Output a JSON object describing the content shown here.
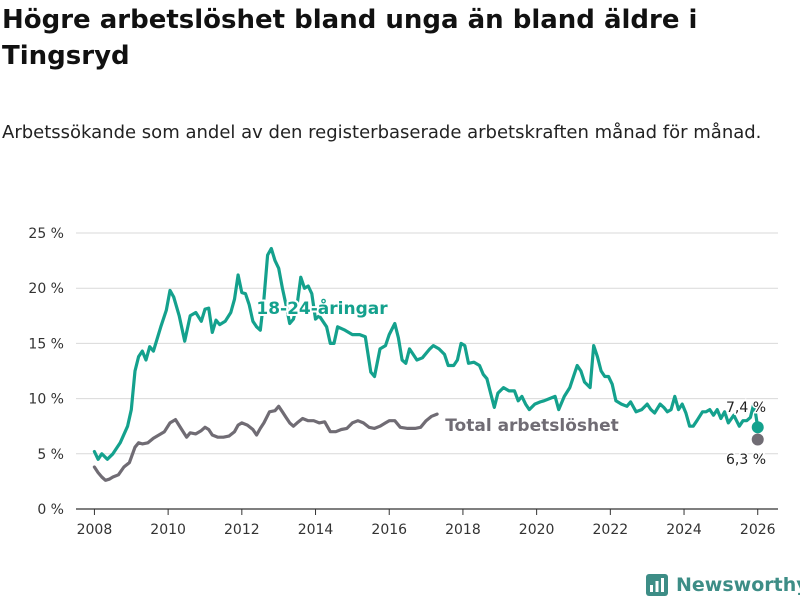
{
  "header": {
    "title": "Högre arbetslöshet bland unga än bland äldre i Tingsryd",
    "subtitle": "Arbetssökande som andel av den registerbaserade arbetskraften månad för månad."
  },
  "brand": {
    "name": "Newsworthy",
    "icon": "newsworthy-logo-icon"
  },
  "colors": {
    "youth": "#14a18d",
    "total": "#706c74",
    "grid": "#d9d9d9",
    "axis": "#333333",
    "brand": "#3d8d86"
  },
  "chart_data": {
    "type": "line",
    "title": "Högre arbetslöshet bland unga än bland äldre i Tingsryd",
    "xlabel": "",
    "ylabel": "",
    "xlim": [
      2007.5,
      2026.55
    ],
    "ylim": [
      0,
      25
    ],
    "y_ticks": [
      0,
      5,
      10,
      15,
      20,
      25
    ],
    "y_tick_labels": [
      "0 %",
      "5 %",
      "10 %",
      "15 %",
      "20 %",
      "25 %"
    ],
    "x_ticks": [
      2008,
      2010,
      2012,
      2014,
      2016,
      2018,
      2020,
      2022,
      2024,
      2026
    ],
    "x_tick_labels": [
      "2008",
      "2010",
      "2012",
      "2014",
      "2016",
      "2018",
      "2020",
      "2022",
      "2024",
      "2026"
    ],
    "grid": true,
    "series": [
      {
        "name": "18-24-åringar",
        "label": "18-24-åringar",
        "end_label": "7,4 %",
        "end_value": 7.4,
        "points": [
          [
            2008.0,
            5.2
          ],
          [
            2008.1,
            4.5
          ],
          [
            2008.2,
            5.0
          ],
          [
            2008.35,
            4.5
          ],
          [
            2008.5,
            5.0
          ],
          [
            2008.7,
            6.0
          ],
          [
            2008.9,
            7.5
          ],
          [
            2009.0,
            9.0
          ],
          [
            2009.1,
            12.5
          ],
          [
            2009.2,
            13.8
          ],
          [
            2009.3,
            14.3
          ],
          [
            2009.4,
            13.5
          ],
          [
            2009.5,
            14.7
          ],
          [
            2009.6,
            14.3
          ],
          [
            2009.8,
            16.5
          ],
          [
            2009.95,
            18.0
          ],
          [
            2010.05,
            19.8
          ],
          [
            2010.15,
            19.2
          ],
          [
            2010.3,
            17.5
          ],
          [
            2010.45,
            15.2
          ],
          [
            2010.6,
            17.5
          ],
          [
            2010.75,
            17.8
          ],
          [
            2010.9,
            17.0
          ],
          [
            2011.0,
            18.1
          ],
          [
            2011.1,
            18.2
          ],
          [
            2011.2,
            16.0
          ],
          [
            2011.3,
            17.1
          ],
          [
            2011.4,
            16.7
          ],
          [
            2011.55,
            17.0
          ],
          [
            2011.7,
            17.8
          ],
          [
            2011.8,
            19.0
          ],
          [
            2011.9,
            21.2
          ],
          [
            2012.0,
            19.6
          ],
          [
            2012.1,
            19.5
          ],
          [
            2012.2,
            18.5
          ],
          [
            2012.3,
            17.0
          ],
          [
            2012.4,
            16.5
          ],
          [
            2012.5,
            16.2
          ],
          [
            2012.6,
            19.0
          ],
          [
            2012.7,
            23.0
          ],
          [
            2012.8,
            23.6
          ],
          [
            2012.9,
            22.5
          ],
          [
            2013.0,
            21.8
          ],
          [
            2013.1,
            20.0
          ],
          [
            2013.2,
            18.5
          ],
          [
            2013.3,
            16.8
          ],
          [
            2013.4,
            17.2
          ],
          [
            2013.5,
            18.5
          ],
          [
            2013.6,
            21.0
          ],
          [
            2013.7,
            20.0
          ],
          [
            2013.8,
            20.2
          ],
          [
            2013.9,
            19.5
          ],
          [
            2014.0,
            17.2
          ],
          [
            2014.1,
            17.5
          ],
          [
            2014.2,
            17.0
          ],
          [
            2014.3,
            16.5
          ],
          [
            2014.4,
            15.0
          ],
          [
            2014.5,
            15.0
          ],
          [
            2014.6,
            16.5
          ],
          [
            2014.8,
            16.2
          ],
          [
            2015.0,
            15.8
          ],
          [
            2015.2,
            15.8
          ],
          [
            2015.35,
            15.6
          ],
          [
            2015.5,
            12.4
          ],
          [
            2015.6,
            12.0
          ],
          [
            2015.75,
            14.5
          ],
          [
            2015.9,
            14.8
          ],
          [
            2016.0,
            15.8
          ],
          [
            2016.15,
            16.8
          ],
          [
            2016.25,
            15.5
          ],
          [
            2016.35,
            13.5
          ],
          [
            2016.45,
            13.2
          ],
          [
            2016.55,
            14.5
          ],
          [
            2016.65,
            14.0
          ],
          [
            2016.75,
            13.5
          ],
          [
            2016.9,
            13.7
          ],
          [
            2017.1,
            14.5
          ],
          [
            2017.2,
            14.8
          ],
          [
            2017.35,
            14.5
          ],
          [
            2017.5,
            14.0
          ],
          [
            2017.6,
            13.0
          ],
          [
            2017.75,
            13.0
          ],
          [
            2017.85,
            13.5
          ],
          [
            2017.95,
            15.0
          ],
          [
            2018.05,
            14.8
          ],
          [
            2018.15,
            13.2
          ],
          [
            2018.3,
            13.3
          ],
          [
            2018.45,
            13.0
          ],
          [
            2018.55,
            12.2
          ],
          [
            2018.65,
            11.8
          ],
          [
            2018.75,
            10.5
          ],
          [
            2018.85,
            9.2
          ],
          [
            2018.95,
            10.5
          ],
          [
            2019.1,
            11.0
          ],
          [
            2019.25,
            10.7
          ],
          [
            2019.4,
            10.7
          ],
          [
            2019.5,
            9.8
          ],
          [
            2019.6,
            10.2
          ],
          [
            2019.7,
            9.5
          ],
          [
            2019.8,
            9.0
          ],
          [
            2019.95,
            9.5
          ],
          [
            2020.1,
            9.7
          ],
          [
            2020.2,
            9.8
          ],
          [
            2020.35,
            10.0
          ],
          [
            2020.5,
            10.2
          ],
          [
            2020.6,
            9.0
          ],
          [
            2020.75,
            10.2
          ],
          [
            2020.9,
            11.0
          ],
          [
            2021.0,
            12.0
          ],
          [
            2021.1,
            13.0
          ],
          [
            2021.2,
            12.5
          ],
          [
            2021.3,
            11.5
          ],
          [
            2021.45,
            11.0
          ],
          [
            2021.55,
            14.8
          ],
          [
            2021.65,
            13.8
          ],
          [
            2021.75,
            12.5
          ],
          [
            2021.85,
            12.0
          ],
          [
            2021.95,
            12.0
          ],
          [
            2022.05,
            11.3
          ],
          [
            2022.15,
            9.8
          ],
          [
            2022.3,
            9.5
          ],
          [
            2022.45,
            9.3
          ],
          [
            2022.55,
            9.7
          ],
          [
            2022.7,
            8.8
          ],
          [
            2022.85,
            9.0
          ],
          [
            2023.0,
            9.5
          ],
          [
            2023.1,
            9.0
          ],
          [
            2023.2,
            8.7
          ],
          [
            2023.35,
            9.5
          ],
          [
            2023.45,
            9.2
          ],
          [
            2023.55,
            8.8
          ],
          [
            2023.65,
            9.0
          ],
          [
            2023.75,
            10.2
          ],
          [
            2023.85,
            9.0
          ],
          [
            2023.95,
            9.5
          ],
          [
            2024.05,
            8.7
          ],
          [
            2024.15,
            7.5
          ],
          [
            2024.25,
            7.5
          ],
          [
            2024.35,
            8.0
          ],
          [
            2024.5,
            8.8
          ],
          [
            2024.6,
            8.8
          ],
          [
            2024.7,
            9.0
          ],
          [
            2024.8,
            8.5
          ],
          [
            2024.9,
            9.0
          ],
          [
            2025.0,
            8.2
          ],
          [
            2025.1,
            8.8
          ],
          [
            2025.2,
            7.8
          ],
          [
            2025.35,
            8.5
          ],
          [
            2025.5,
            7.5
          ],
          [
            2025.6,
            8.0
          ],
          [
            2025.7,
            8.0
          ],
          [
            2025.8,
            8.3
          ],
          [
            2025.9,
            9.6
          ],
          [
            2026.0,
            7.4
          ]
        ]
      },
      {
        "name": "Total arbetslöshet",
        "label": "Total arbetslöshet",
        "end_label": "6,3 %",
        "end_value": 6.3,
        "points": [
          [
            2008.0,
            3.8
          ],
          [
            2008.1,
            3.3
          ],
          [
            2008.2,
            2.9
          ],
          [
            2008.3,
            2.6
          ],
          [
            2008.4,
            2.7
          ],
          [
            2008.5,
            2.9
          ],
          [
            2008.65,
            3.1
          ],
          [
            2008.8,
            3.8
          ],
          [
            2008.95,
            4.2
          ],
          [
            2009.1,
            5.6
          ],
          [
            2009.2,
            6.0
          ],
          [
            2009.3,
            5.9
          ],
          [
            2009.45,
            6.0
          ],
          [
            2009.6,
            6.4
          ],
          [
            2009.75,
            6.7
          ],
          [
            2009.9,
            7.0
          ],
          [
            2010.05,
            7.8
          ],
          [
            2010.2,
            8.1
          ],
          [
            2010.35,
            7.3
          ],
          [
            2010.5,
            6.5
          ],
          [
            2010.6,
            6.9
          ],
          [
            2010.75,
            6.8
          ],
          [
            2010.9,
            7.1
          ],
          [
            2011.0,
            7.4
          ],
          [
            2011.1,
            7.2
          ],
          [
            2011.2,
            6.7
          ],
          [
            2011.35,
            6.5
          ],
          [
            2011.5,
            6.5
          ],
          [
            2011.65,
            6.6
          ],
          [
            2011.8,
            7.0
          ],
          [
            2011.9,
            7.6
          ],
          [
            2012.0,
            7.8
          ],
          [
            2012.15,
            7.6
          ],
          [
            2012.3,
            7.2
          ],
          [
            2012.4,
            6.7
          ],
          [
            2012.5,
            7.3
          ],
          [
            2012.6,
            7.8
          ],
          [
            2012.75,
            8.8
          ],
          [
            2012.9,
            8.9
          ],
          [
            2013.0,
            9.3
          ],
          [
            2013.1,
            8.8
          ],
          [
            2013.2,
            8.3
          ],
          [
            2013.3,
            7.8
          ],
          [
            2013.4,
            7.5
          ],
          [
            2013.5,
            7.8
          ],
          [
            2013.65,
            8.2
          ],
          [
            2013.8,
            8.0
          ],
          [
            2013.95,
            8.0
          ],
          [
            2014.1,
            7.8
          ],
          [
            2014.25,
            7.9
          ],
          [
            2014.4,
            7.0
          ],
          [
            2014.55,
            7.0
          ],
          [
            2014.7,
            7.2
          ],
          [
            2014.85,
            7.3
          ],
          [
            2015.0,
            7.8
          ],
          [
            2015.15,
            8.0
          ],
          [
            2015.3,
            7.8
          ],
          [
            2015.45,
            7.4
          ],
          [
            2015.6,
            7.3
          ],
          [
            2015.75,
            7.5
          ],
          [
            2015.9,
            7.8
          ],
          [
            2016.0,
            8.0
          ],
          [
            2016.15,
            8.0
          ],
          [
            2016.3,
            7.4
          ],
          [
            2016.5,
            7.3
          ],
          [
            2016.7,
            7.3
          ],
          [
            2016.85,
            7.4
          ],
          [
            2017.0,
            8.0
          ],
          [
            2017.15,
            8.4
          ],
          [
            2017.3,
            8.6
          ]
        ]
      }
    ]
  }
}
